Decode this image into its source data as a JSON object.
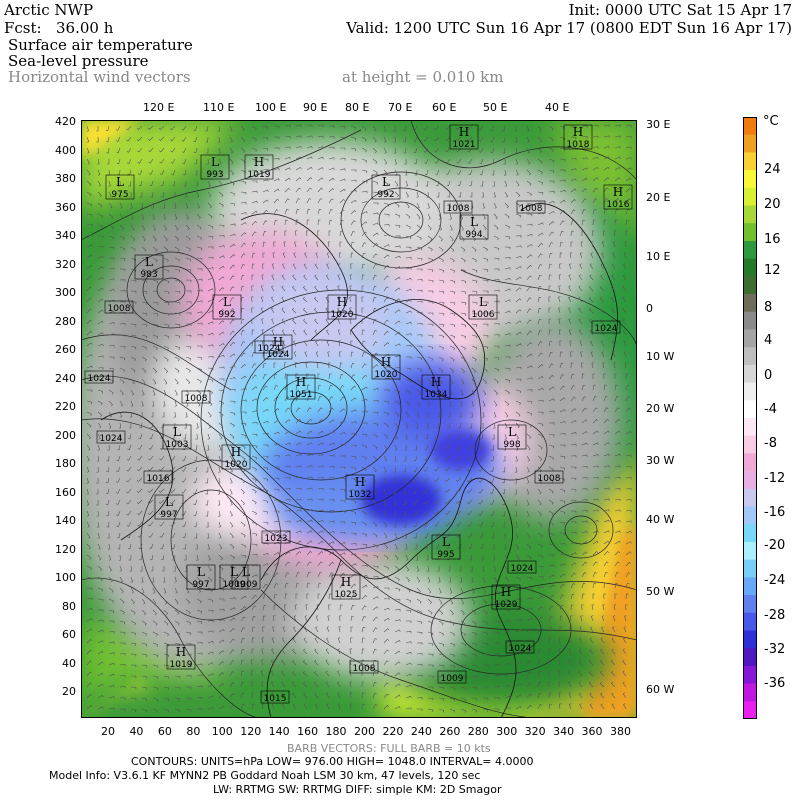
{
  "header": {
    "model": "Arctic NWP",
    "init": "Init: 0000 UTC Sat 15 Apr 17",
    "fcst_label": "Fcst:",
    "fcst_value": "36.00 h",
    "valid": "Valid: 1200 UTC Sun 16 Apr 17 (0800 EDT Sun 16 Apr 17)",
    "field1": "Surface air temperature",
    "field2": "Sea-level pressure",
    "field3": "Horizontal wind vectors",
    "height": "at height = 0.010 km"
  },
  "top_longitudes": [
    "120 E",
    "110 E",
    "100 E",
    "90 E",
    "80 E",
    "70 E",
    "60 E",
    "50 E",
    "40 E"
  ],
  "right_longitudes": [
    "30 E",
    "20 E",
    "10 E",
    "0",
    "10 W",
    "20 W",
    "30 W",
    "40 W",
    "50 W",
    "60 W"
  ],
  "y_ticks": [
    "420",
    "400",
    "380",
    "360",
    "340",
    "320",
    "300",
    "280",
    "260",
    "240",
    "220",
    "200",
    "180",
    "160",
    "140",
    "120",
    "100",
    "80",
    "60",
    "40",
    "20"
  ],
  "x_ticks": [
    "20",
    "40",
    "60",
    "80",
    "100",
    "120",
    "140",
    "160",
    "180",
    "200",
    "220",
    "240",
    "260",
    "280",
    "300",
    "320",
    "340",
    "360",
    "380"
  ],
  "colorbar": {
    "unit": "°C",
    "labels": [
      "24",
      "20",
      "16",
      "12",
      "8",
      "4",
      "0",
      "-4",
      "-8",
      "-12",
      "-16",
      "-20",
      "-24",
      "-28",
      "-32",
      "-36"
    ],
    "colors": [
      "#f07c10",
      "#f0a020",
      "#f8d030",
      "#f8f838",
      "#d8f030",
      "#a8d838",
      "#70c030",
      "#2c9a3c",
      "#237a28",
      "#3d6e30",
      "#6e6e58",
      "#8a8a8a",
      "#a4a4a4",
      "#bebebe",
      "#d6d6d6",
      "#eeeeee",
      "#ffffff",
      "#fce8f4",
      "#f8cce4",
      "#f0a8d4",
      "#e8b0e0",
      "#c8c8f0",
      "#a0c8f8",
      "#78d8f8",
      "#a8f0fc",
      "#78d0f8",
      "#68a8f8",
      "#6080f0",
      "#4858e8",
      "#3030d8",
      "#5018c0",
      "#8818d8",
      "#c018e0",
      "#e820f0"
    ]
  },
  "pressure_labels": [
    {
      "kind": "H",
      "value": "1021"
    },
    {
      "kind": "H",
      "value": "1018"
    },
    {
      "kind": "H",
      "value": "1016"
    },
    {
      "kind": "L",
      "value": "993"
    },
    {
      "kind": "L",
      "value": "992"
    },
    {
      "kind": "H",
      "value": "1019"
    },
    {
      "kind": "L",
      "value": "975"
    },
    {
      "kind": "",
      "value": "1008"
    },
    {
      "kind": "",
      "value": "1008"
    },
    {
      "kind": "L",
      "value": "994"
    },
    {
      "kind": "L",
      "value": "983"
    },
    {
      "kind": "",
      "value": "1008"
    },
    {
      "kind": "L",
      "value": "992"
    },
    {
      "kind": "H",
      "value": "1020"
    },
    {
      "kind": "L",
      "value": "1006"
    },
    {
      "kind": "H",
      "value": "1024"
    },
    {
      "kind": "",
      "value": "1024"
    },
    {
      "kind": "H",
      "value": "1020"
    },
    {
      "kind": "",
      "value": "1024"
    },
    {
      "kind": "",
      "value": "1024"
    },
    {
      "kind": "H",
      "value": "1051"
    },
    {
      "kind": "H",
      "value": "1034"
    },
    {
      "kind": "",
      "value": "1008"
    },
    {
      "kind": "",
      "value": "1024"
    },
    {
      "kind": "L",
      "value": "1003"
    },
    {
      "kind": "L",
      "value": "998"
    },
    {
      "kind": "H",
      "value": "1020"
    },
    {
      "kind": "",
      "value": "1016"
    },
    {
      "kind": "",
      "value": "1008"
    },
    {
      "kind": "H",
      "value": "1032"
    },
    {
      "kind": "L",
      "value": "997"
    },
    {
      "kind": "",
      "value": "1023"
    },
    {
      "kind": "L",
      "value": "1009"
    },
    {
      "kind": "L",
      "value": "995"
    },
    {
      "kind": "L",
      "value": "997"
    },
    {
      "kind": "L",
      "value": "1009"
    },
    {
      "kind": "H",
      "value": "1025"
    },
    {
      "kind": "",
      "value": "1024"
    },
    {
      "kind": "H",
      "value": "1029"
    },
    {
      "kind": "",
      "value": "1024"
    },
    {
      "kind": "H",
      "value": "1019"
    },
    {
      "kind": "",
      "value": "1015"
    },
    {
      "kind": "",
      "value": "1009"
    },
    {
      "kind": "",
      "value": "1008"
    }
  ],
  "footer": {
    "barb": "BARB VECTORS:  FULL BARB = 10 kts",
    "contours": "CONTOURS:  UNITS=hPa   LOW=  976.00        HIGH=  1048.0        INTERVAL=   4.0000",
    "model_info": "Model Info: V3.6.1    KF        MYNN2 PB Goddard      Noah LSM   30 km,    47 levels,   120 sec",
    "physics": "LW: RRTMG SW: RRTMG    DIFF: simple KM: 2D Smagor"
  }
}
